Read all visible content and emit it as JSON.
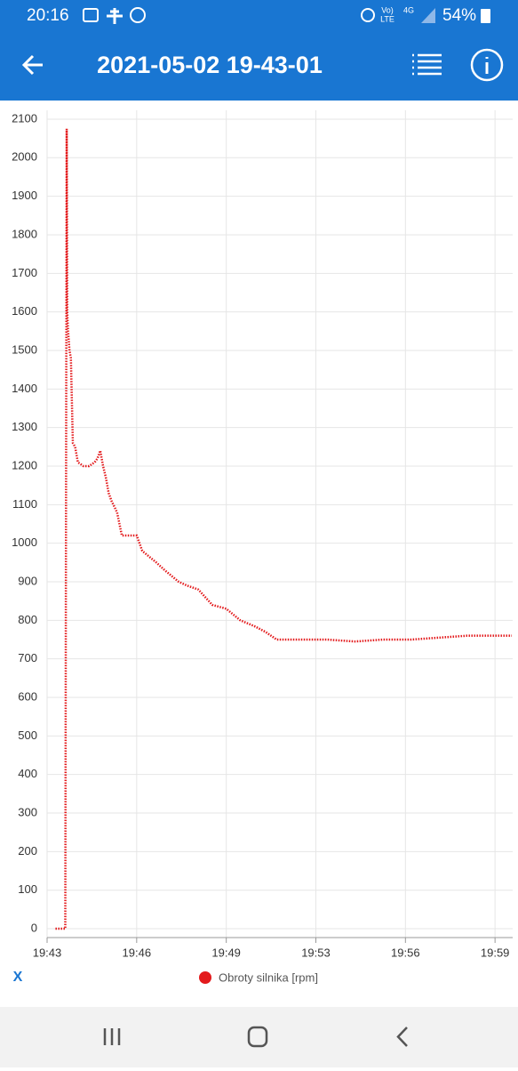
{
  "status_bar": {
    "time": "20:16",
    "volte_top": "Vo)",
    "volte_bottom": "LTE",
    "network": "4G",
    "battery": "54%"
  },
  "app_bar": {
    "title": "2021-05-02 19-43-01"
  },
  "axis_button": "X",
  "chart_data": {
    "type": "line",
    "x": [
      0.3,
      0.65,
      0.7,
      0.72,
      0.75,
      0.8,
      0.85,
      0.92,
      1.0,
      1.1,
      1.3,
      1.5,
      1.7,
      1.8,
      1.9,
      2.0,
      2.1,
      2.2,
      2.3,
      2.5,
      2.67,
      3.2,
      3.4,
      3.9,
      4.2,
      4.7,
      5.0,
      5.4,
      5.9,
      6.4,
      6.9,
      7.4,
      7.8,
      8.2,
      9.0,
      10.0,
      11.0,
      12.0,
      13.0,
      14.0,
      15.0,
      16.0,
      16.6
    ],
    "series": [
      {
        "name": "Obroty silnika [rpm]",
        "color": "#e31a1c",
        "values": [
          0,
          0,
          2075,
          1600,
          1550,
          1500,
          1480,
          1260,
          1250,
          1210,
          1200,
          1200,
          1210,
          1220,
          1240,
          1200,
          1170,
          1130,
          1110,
          1080,
          1020,
          1020,
          980,
          950,
          930,
          900,
          890,
          880,
          840,
          830,
          800,
          785,
          770,
          750,
          750,
          750,
          745,
          750,
          750,
          755,
          760,
          760,
          760
        ]
      }
    ],
    "xlim": [
      0,
      16.63
    ],
    "xticks": [
      {
        "value": 0,
        "label": "19:43"
      },
      {
        "value": 3.2,
        "label": "19:46"
      },
      {
        "value": 6.4,
        "label": "19:49"
      },
      {
        "value": 9.6,
        "label": "19:53"
      },
      {
        "value": 12.8,
        "label": "19:56"
      },
      {
        "value": 16,
        "label": "19:59"
      }
    ],
    "ylim": [
      -23,
      2123
    ],
    "yticks": [
      0,
      100,
      200,
      300,
      400,
      500,
      600,
      700,
      800,
      900,
      1000,
      1100,
      1200,
      1300,
      1400,
      1500,
      1600,
      1700,
      1800,
      1900,
      2000,
      2100
    ],
    "grid": true
  }
}
